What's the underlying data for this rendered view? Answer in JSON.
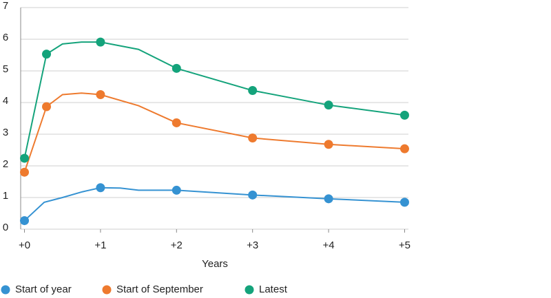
{
  "chart_data": {
    "type": "line",
    "xlabel": "Years",
    "xlim": [
      -0.05,
      5.05
    ],
    "xticks": [
      {
        "value": 0,
        "label": "+0"
      },
      {
        "value": 1,
        "label": "+1"
      },
      {
        "value": 2,
        "label": "+2"
      },
      {
        "value": 3,
        "label": "+3"
      },
      {
        "value": 4,
        "label": "+4"
      },
      {
        "value": 5,
        "label": "+5"
      }
    ],
    "ylim": [
      0,
      7
    ],
    "yticks": [
      0,
      1,
      2,
      3,
      4,
      5,
      6,
      7
    ],
    "grid": true,
    "legend": "bottom",
    "series": [
      {
        "name": "Start of year",
        "color": "#3592d2",
        "x": [
          0,
          0.26,
          0.5,
          0.76,
          1,
          1.26,
          1.5,
          2,
          3,
          4,
          5
        ],
        "values": [
          0.27,
          0.85,
          1.0,
          1.18,
          1.31,
          1.3,
          1.23,
          1.23,
          1.08,
          0.96,
          0.85
        ],
        "markers": [
          true,
          false,
          false,
          false,
          true,
          false,
          false,
          true,
          true,
          true,
          true
        ]
      },
      {
        "name": "Start of September",
        "color": "#ee7a2e",
        "x": [
          0,
          0.29,
          0.5,
          0.75,
          1,
          1.5,
          2,
          3,
          4,
          5
        ],
        "values": [
          1.8,
          3.87,
          4.25,
          4.3,
          4.25,
          3.9,
          3.36,
          2.88,
          2.68,
          2.54
        ],
        "markers": [
          true,
          true,
          false,
          false,
          true,
          false,
          true,
          true,
          true,
          true
        ]
      },
      {
        "name": "Latest",
        "color": "#14a37b",
        "x": [
          0,
          0.29,
          0.5,
          0.75,
          1,
          1.5,
          2,
          3,
          4,
          5
        ],
        "values": [
          2.24,
          5.53,
          5.85,
          5.91,
          5.91,
          5.68,
          5.08,
          4.38,
          3.92,
          3.6
        ],
        "markers": [
          true,
          true,
          false,
          false,
          true,
          false,
          true,
          true,
          true,
          true
        ]
      }
    ]
  }
}
